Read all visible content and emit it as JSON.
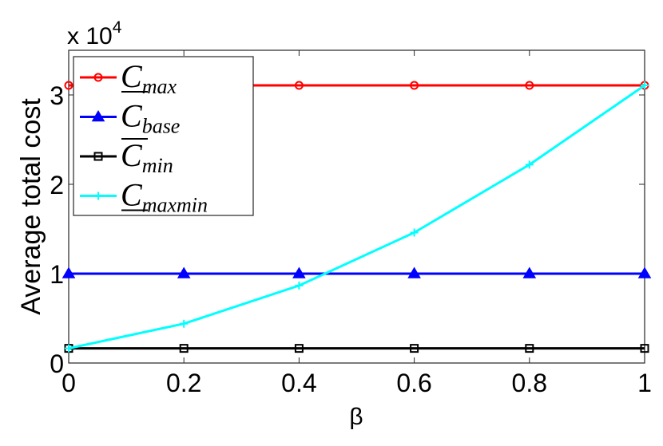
{
  "chart_data": {
    "type": "line",
    "title": "",
    "xlabel": "β",
    "ylabel": "Average total cost",
    "y_multiplier_label": "x 10",
    "y_multiplier_exponent": "4",
    "xlim": [
      0,
      1
    ],
    "ylim": [
      0,
      35000
    ],
    "x_ticks": [
      "0",
      "0.2",
      "0.4",
      "0.6",
      "0.8",
      "1"
    ],
    "y_ticks": [
      "0",
      "1",
      "2",
      "3"
    ],
    "grid": false,
    "legend_placement": "top-left",
    "x": [
      0,
      0.2,
      0.4,
      0.6,
      0.8,
      1
    ],
    "series": [
      {
        "name": "C",
        "subscript": "max",
        "bar": "under",
        "color": "#ff0000",
        "marker": "circle",
        "values": [
          31070,
          31070,
          31070,
          31070,
          31070,
          31070
        ]
      },
      {
        "name": "C",
        "subscript": "base",
        "bar": "none",
        "color": "#0000ff",
        "marker": "triangle",
        "values": [
          10000,
          10000,
          10000,
          10000,
          10000,
          10000
        ]
      },
      {
        "name": "C",
        "subscript": "min",
        "bar": "over",
        "color": "#000000",
        "marker": "square",
        "values": [
          1640,
          1640,
          1640,
          1640,
          1640,
          1640
        ]
      },
      {
        "name": "C",
        "subscript": "maxmin",
        "bar": "under",
        "color": "#00ffff",
        "marker": "plus",
        "values": [
          1640,
          4400,
          8670,
          14600,
          22200,
          31070
        ]
      }
    ]
  }
}
